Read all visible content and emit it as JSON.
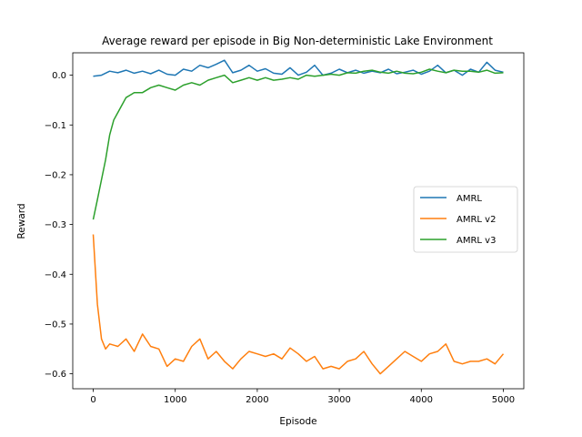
{
  "chart_data": {
    "type": "line",
    "title": "Average reward per episode in Big Non-deterministic Lake Environment",
    "xlabel": "Episode",
    "ylabel": "Reward",
    "xlim": [
      -250,
      5250
    ],
    "ylim": [
      -0.63,
      0.045
    ],
    "xticks": [
      0,
      1000,
      2000,
      3000,
      4000,
      5000
    ],
    "yticks": [
      0.0,
      -0.1,
      -0.2,
      -0.3,
      -0.4,
      -0.5,
      -0.6
    ],
    "xtick_labels": [
      "0",
      "1000",
      "2000",
      "3000",
      "4000",
      "5000"
    ],
    "ytick_labels": [
      "0.0",
      "−0.1",
      "−0.2",
      "−0.3",
      "−0.4",
      "−0.5",
      "−0.6"
    ],
    "grid": false,
    "legend_position": "center-right",
    "series": [
      {
        "name": "AMRL",
        "color": "#1f77b4",
        "x": [
          0,
          100,
          200,
          300,
          400,
          500,
          600,
          700,
          800,
          900,
          1000,
          1100,
          1200,
          1300,
          1400,
          1500,
          1600,
          1700,
          1800,
          1900,
          2000,
          2100,
          2200,
          2300,
          2400,
          2500,
          2600,
          2700,
          2800,
          2900,
          3000,
          3100,
          3200,
          3300,
          3400,
          3500,
          3600,
          3700,
          3800,
          3900,
          4000,
          4100,
          4200,
          4300,
          4400,
          4500,
          4600,
          4700,
          4800,
          4900,
          5000
        ],
        "y": [
          -0.002,
          0.0,
          0.008,
          0.005,
          0.01,
          0.004,
          0.008,
          0.003,
          0.01,
          0.002,
          0.0,
          0.012,
          0.008,
          0.02,
          0.015,
          0.022,
          0.03,
          0.005,
          0.01,
          0.02,
          0.008,
          0.013,
          0.004,
          0.002,
          0.015,
          0.0,
          0.006,
          0.02,
          0.0,
          0.004,
          0.012,
          0.005,
          0.01,
          0.004,
          0.008,
          0.005,
          0.012,
          0.003,
          0.006,
          0.01,
          0.002,
          0.008,
          0.02,
          0.005,
          0.01,
          0.0,
          0.012,
          0.006,
          0.026,
          0.01,
          0.006
        ]
      },
      {
        "name": "AMRL v2",
        "color": "#ff7f0e",
        "x": [
          0,
          50,
          100,
          150,
          200,
          300,
          400,
          500,
          600,
          700,
          800,
          900,
          1000,
          1100,
          1200,
          1300,
          1400,
          1500,
          1600,
          1700,
          1800,
          1900,
          2000,
          2100,
          2200,
          2300,
          2400,
          2500,
          2600,
          2700,
          2800,
          2900,
          3000,
          3100,
          3200,
          3300,
          3400,
          3500,
          3600,
          3700,
          3800,
          3900,
          4000,
          4100,
          4200,
          4300,
          4400,
          4500,
          4600,
          4700,
          4800,
          4900,
          5000
        ],
        "y": [
          -0.32,
          -0.46,
          -0.53,
          -0.55,
          -0.54,
          -0.545,
          -0.53,
          -0.555,
          -0.52,
          -0.545,
          -0.55,
          -0.585,
          -0.57,
          -0.575,
          -0.545,
          -0.53,
          -0.57,
          -0.555,
          -0.575,
          -0.59,
          -0.57,
          -0.555,
          -0.56,
          -0.565,
          -0.56,
          -0.57,
          -0.548,
          -0.56,
          -0.575,
          -0.565,
          -0.59,
          -0.585,
          -0.59,
          -0.575,
          -0.57,
          -0.555,
          -0.58,
          -0.6,
          -0.585,
          -0.57,
          -0.555,
          -0.565,
          -0.575,
          -0.56,
          -0.555,
          -0.54,
          -0.575,
          -0.58,
          -0.575,
          -0.575,
          -0.57,
          -0.58,
          -0.56
        ]
      },
      {
        "name": "AMRL v3",
        "color": "#2ca02c",
        "x": [
          0,
          50,
          100,
          150,
          200,
          250,
          300,
          350,
          400,
          450,
          500,
          600,
          700,
          800,
          900,
          1000,
          1100,
          1200,
          1300,
          1400,
          1500,
          1600,
          1700,
          1800,
          1900,
          2000,
          2100,
          2200,
          2300,
          2400,
          2500,
          2600,
          2700,
          2800,
          2900,
          3000,
          3100,
          3200,
          3300,
          3400,
          3500,
          3600,
          3700,
          3800,
          3900,
          4000,
          4100,
          4200,
          4300,
          4400,
          4500,
          4600,
          4700,
          4800,
          4900,
          5000
        ],
        "y": [
          -0.29,
          -0.25,
          -0.21,
          -0.17,
          -0.12,
          -0.09,
          -0.075,
          -0.06,
          -0.045,
          -0.04,
          -0.035,
          -0.035,
          -0.025,
          -0.02,
          -0.025,
          -0.03,
          -0.02,
          -0.015,
          -0.02,
          -0.01,
          -0.005,
          0.0,
          -0.015,
          -0.01,
          -0.005,
          -0.01,
          -0.005,
          -0.01,
          -0.008,
          -0.005,
          -0.008,
          0.0,
          -0.002,
          0.0,
          0.002,
          0.0,
          0.005,
          0.004,
          0.008,
          0.01,
          0.006,
          0.004,
          0.008,
          0.004,
          0.003,
          0.006,
          0.012,
          0.008,
          0.005,
          0.01,
          0.008,
          0.008,
          0.006,
          0.01,
          0.004,
          0.005
        ]
      }
    ]
  }
}
